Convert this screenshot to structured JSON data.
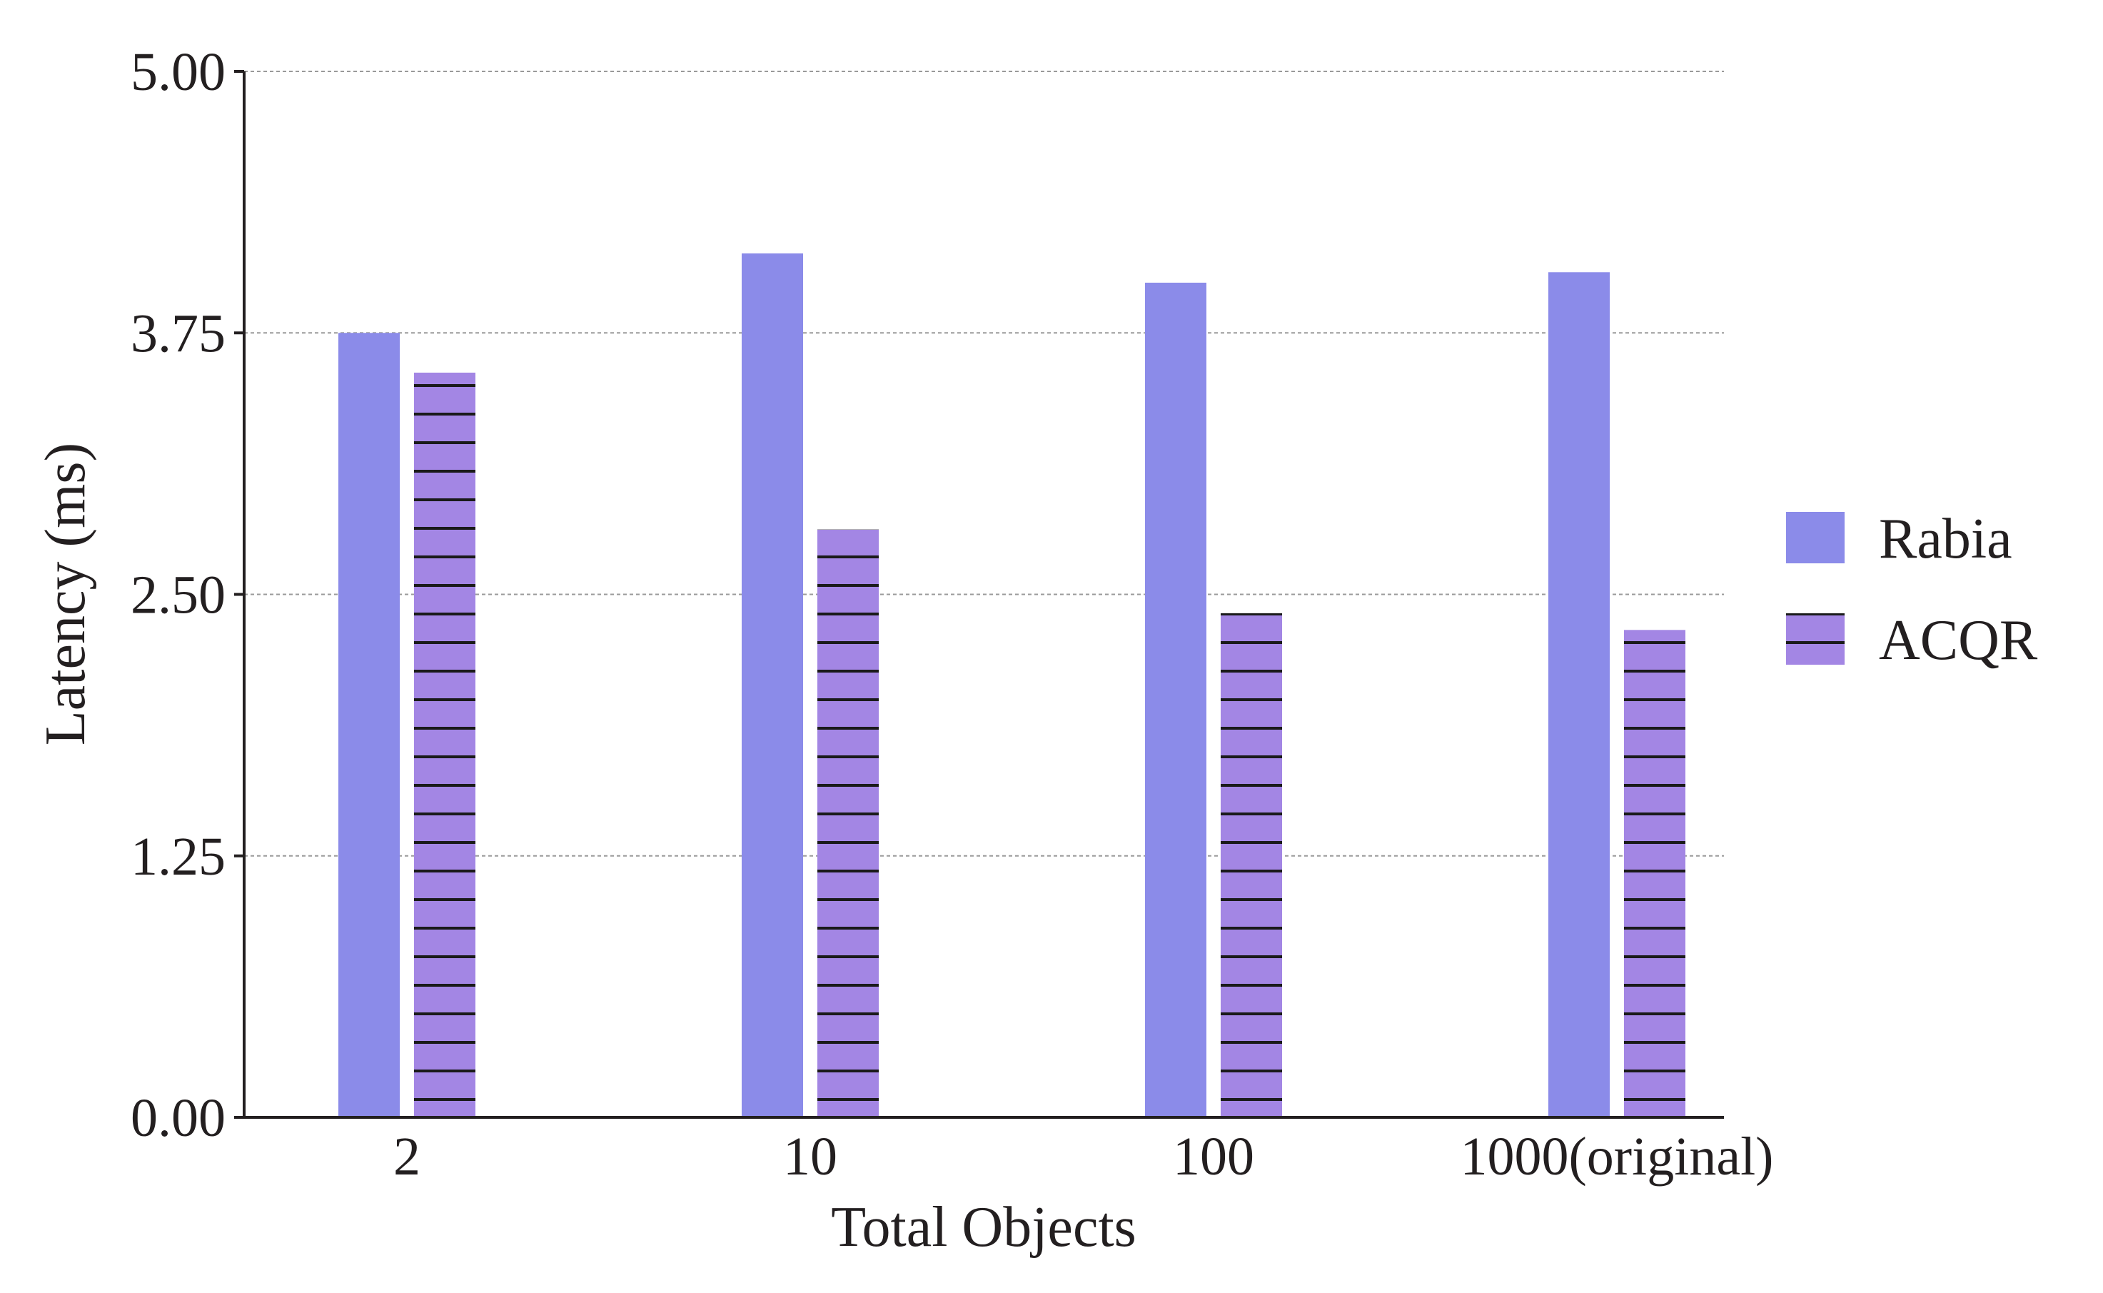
{
  "chart_data": {
    "type": "bar",
    "xlabel": "Total Objects",
    "ylabel": "Latency (ms)",
    "categories": [
      "2",
      "10",
      "100",
      "1000(original)"
    ],
    "yticks": [
      "0.00",
      "1.25",
      "2.50",
      "3.75",
      "5.00"
    ],
    "ylim": [
      0,
      5
    ],
    "grid": "horizontal dashed",
    "legend_position": "right",
    "series": [
      {
        "name": "Rabia",
        "values": [
          3.75,
          4.13,
          3.99,
          4.04
        ],
        "color": "#8b8be9",
        "pattern": "solid"
      },
      {
        "name": "ACQR",
        "values": [
          3.56,
          2.81,
          2.41,
          2.33
        ],
        "color": "#a386e4",
        "pattern": "horizontal-hatch"
      }
    ]
  }
}
